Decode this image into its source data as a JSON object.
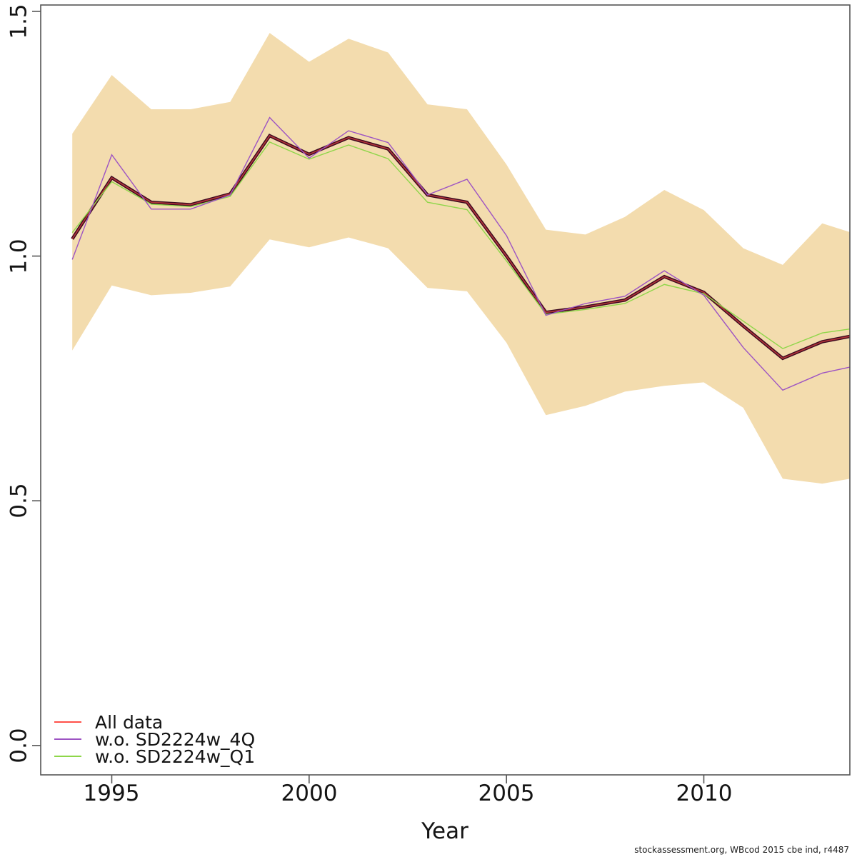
{
  "footer": "stockassessment.org, WBcod 2015 cbe ind, r4487",
  "axes": {
    "x_label": "Year",
    "x_ticks": [
      "1995",
      "2000",
      "2005",
      "2010"
    ],
    "y_ticks": [
      "0.0",
      "0.5",
      "1.0",
      "1.5"
    ]
  },
  "legend": {
    "items": [
      {
        "label": "All data",
        "color": "#ff5149"
      },
      {
        "label": "w.o. SD2224w_4Q",
        "color": "#9d53c3"
      },
      {
        "label": "w.o. SD2224w_Q1",
        "color": "#8ed649"
      }
    ]
  },
  "chart_data": {
    "type": "line",
    "title": "",
    "xlabel": "Year",
    "ylabel": "",
    "xlim": [
      1993.2,
      2013.7
    ],
    "ylim": [
      -0.06,
      1.513
    ],
    "x_ticks": [
      1995,
      2000,
      2005,
      2010
    ],
    "y_ticks": [
      0.0,
      0.5,
      1.0,
      1.5
    ],
    "grid": false,
    "legend_position": "bottom-left",
    "x": [
      1994,
      1995,
      1996,
      1997,
      1998,
      1999,
      2000,
      2001,
      2002,
      2003,
      2004,
      2005,
      2006,
      2007,
      2008,
      2009,
      2010,
      2011,
      2012,
      2013,
      2013.7
    ],
    "band": {
      "label": "confidence-band",
      "color": "#f3dcae",
      "upper": [
        1.25,
        1.37,
        1.3,
        1.3,
        1.315,
        1.456,
        1.397,
        1.444,
        1.416,
        1.31,
        1.3,
        1.187,
        1.054,
        1.044,
        1.08,
        1.135,
        1.094,
        1.016,
        0.982,
        1.067,
        1.049
      ],
      "lower": [
        0.807,
        0.94,
        0.92,
        0.925,
        0.938,
        1.034,
        1.018,
        1.038,
        1.016,
        0.935,
        0.928,
        0.823,
        0.675,
        0.694,
        0.723,
        0.735,
        0.742,
        0.69,
        0.545,
        0.535,
        0.545
      ]
    },
    "series": [
      {
        "name": "All data",
        "color": "#ff5149",
        "base_color": "#3b0920",
        "base_width": 4.5,
        "width": 1.7,
        "values": [
          1.035,
          1.16,
          1.11,
          1.105,
          1.127,
          1.246,
          1.208,
          1.242,
          1.219,
          1.125,
          1.11,
          1.0,
          0.885,
          0.896,
          0.91,
          0.958,
          0.926,
          0.857,
          0.791,
          0.825,
          0.836
        ]
      },
      {
        "name": "w.o. SD2224w_4Q",
        "color": "#9d53c3",
        "width": 1.4,
        "values": [
          0.993,
          1.207,
          1.096,
          1.096,
          1.125,
          1.283,
          1.2,
          1.256,
          1.232,
          1.125,
          1.157,
          1.042,
          0.879,
          0.903,
          0.918,
          0.97,
          0.92,
          0.813,
          0.726,
          0.761,
          0.773
        ]
      },
      {
        "name": "w.o. SD2224w_Q1",
        "color": "#8ed649",
        "width": 1.4,
        "values": [
          1.048,
          1.152,
          1.106,
          1.101,
          1.122,
          1.233,
          1.198,
          1.227,
          1.199,
          1.11,
          1.095,
          0.99,
          0.881,
          0.891,
          0.903,
          0.942,
          0.923,
          0.867,
          0.811,
          0.843,
          0.851
        ]
      }
    ]
  }
}
